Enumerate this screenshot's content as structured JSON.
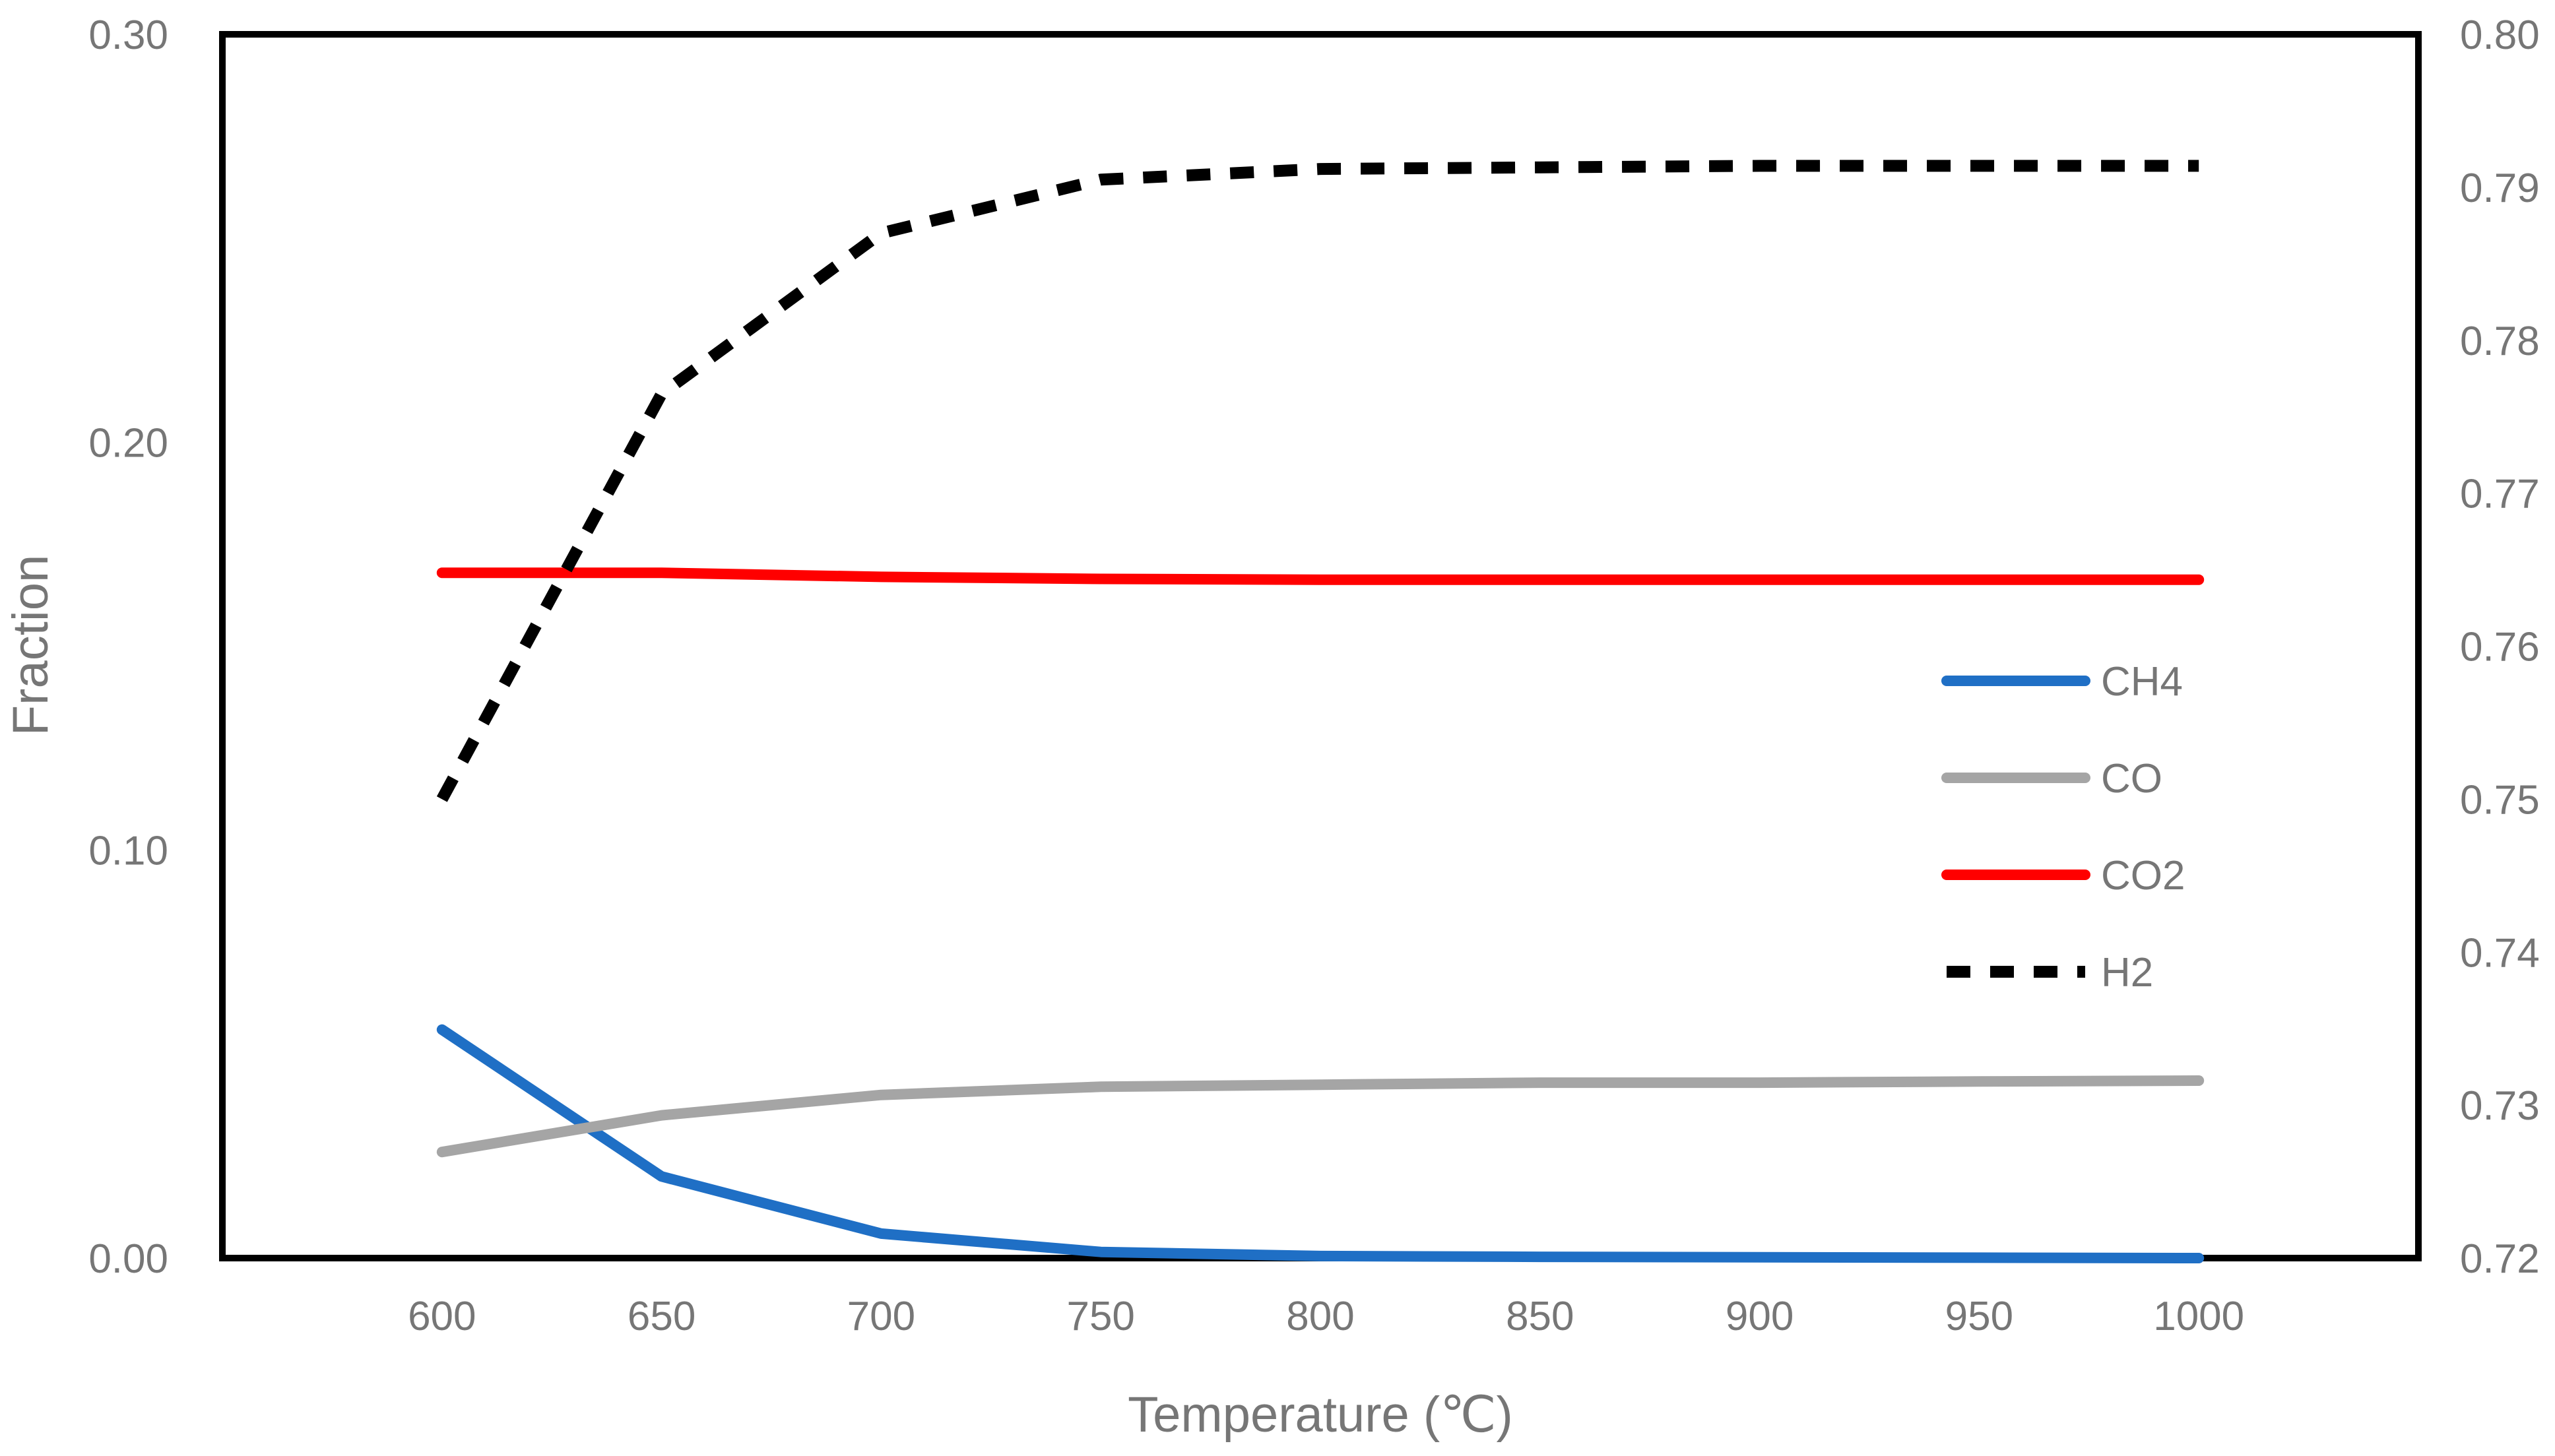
{
  "chart_data": {
    "type": "line",
    "title": "",
    "xlabel": "Temperature (℃)",
    "ylabel": "Fraction",
    "y2label": "",
    "x": [
      600,
      650,
      700,
      750,
      800,
      850,
      900,
      950,
      1000
    ],
    "xlim": [
      550,
      1050
    ],
    "ylim": [
      0.0,
      0.3
    ],
    "y2lim": [
      0.72,
      0.8
    ],
    "x_ticks": [
      "600",
      "650",
      "700",
      "750",
      "800",
      "850",
      "900",
      "950",
      "1000"
    ],
    "y_ticks": [
      "0.00",
      "0.10",
      "0.20",
      "0.30"
    ],
    "y2_ticks": [
      "0.72",
      "0.73",
      "0.74",
      "0.75",
      "0.76",
      "0.77",
      "0.78",
      "0.79",
      "0.80"
    ],
    "legend_position": "right-center",
    "grid": false,
    "series": [
      {
        "name": "CH4",
        "axis": "left",
        "color": "#1f6fc5",
        "style": "solid",
        "values": [
          0.056,
          0.02,
          0.006,
          0.0015,
          0.0005,
          0.0003,
          0.0002,
          0.0001,
          0.0
        ]
      },
      {
        "name": "CO",
        "axis": "left",
        "color": "#a5a5a5",
        "style": "solid",
        "values": [
          0.026,
          0.035,
          0.04,
          0.042,
          0.0425,
          0.043,
          0.043,
          0.0433,
          0.0435
        ]
      },
      {
        "name": "CO2",
        "axis": "left",
        "color": "#ff0000",
        "style": "solid",
        "values": [
          0.168,
          0.168,
          0.167,
          0.1665,
          0.1663,
          0.1663,
          0.1663,
          0.1663,
          0.1663
        ]
      },
      {
        "name": "H2",
        "axis": "right",
        "color": "#000000",
        "style": "dashed",
        "values": [
          0.75,
          0.7765,
          0.787,
          0.7905,
          0.7912,
          0.7913,
          0.7914,
          0.7914,
          0.7914
        ]
      }
    ]
  }
}
